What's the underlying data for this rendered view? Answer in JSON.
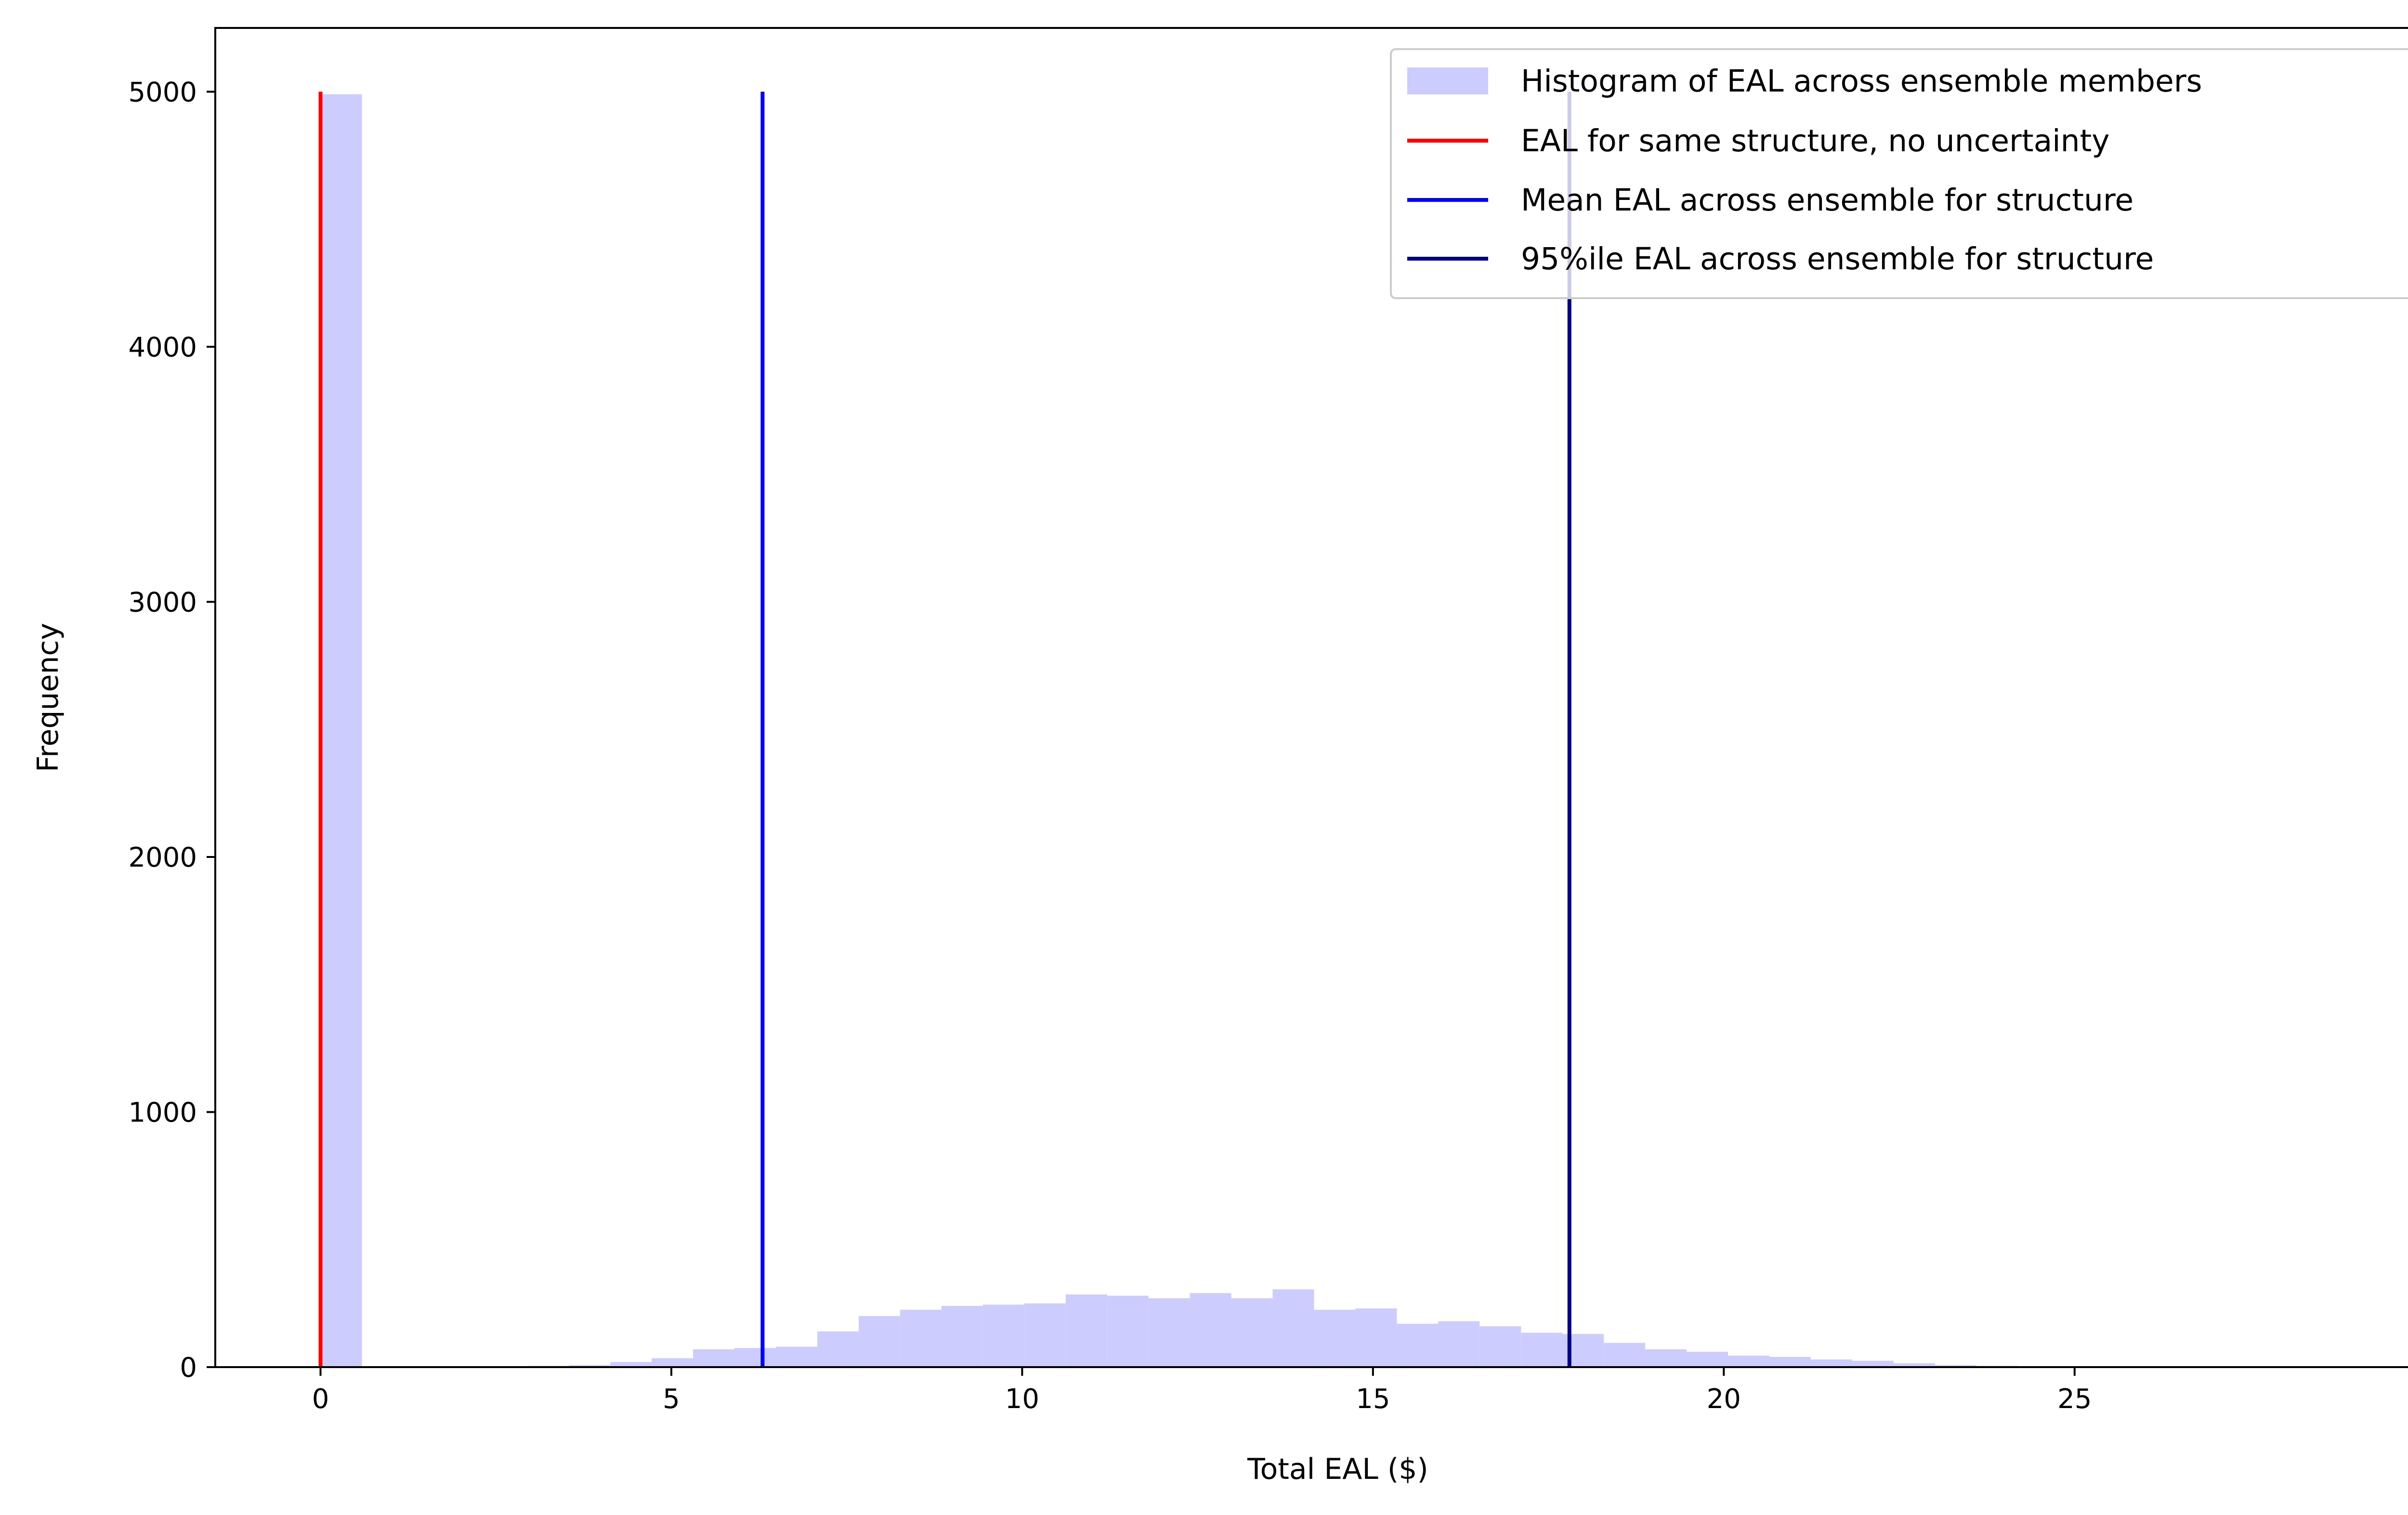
{
  "chart_data": {
    "type": "bar",
    "title": "",
    "xlabel": "Total EAL ($)",
    "ylabel": "Frequency",
    "xlim": [
      -1.5,
      30.5
    ],
    "ylim": [
      0,
      5250
    ],
    "xticks": [
      0,
      5,
      10,
      15,
      20,
      25,
      30
    ],
    "yticks": [
      0,
      1000,
      2000,
      3000,
      4000,
      5000
    ],
    "grid": false,
    "legend_position": "top-right",
    "histogram": {
      "name": "Histogram of EAL across ensemble members",
      "color": "#ccccff",
      "bin_width": 0.59,
      "bins": [
        {
          "x": 0.0,
          "count": 4990
        },
        {
          "x": 2.95,
          "count": 5
        },
        {
          "x": 3.54,
          "count": 8
        },
        {
          "x": 4.13,
          "count": 20
        },
        {
          "x": 4.72,
          "count": 35
        },
        {
          "x": 5.31,
          "count": 70
        },
        {
          "x": 5.9,
          "count": 75
        },
        {
          "x": 6.49,
          "count": 80
        },
        {
          "x": 7.08,
          "count": 140
        },
        {
          "x": 7.67,
          "count": 200
        },
        {
          "x": 8.26,
          "count": 225
        },
        {
          "x": 8.85,
          "count": 240
        },
        {
          "x": 9.44,
          "count": 245
        },
        {
          "x": 10.03,
          "count": 250
        },
        {
          "x": 10.62,
          "count": 285
        },
        {
          "x": 11.21,
          "count": 280
        },
        {
          "x": 11.8,
          "count": 270
        },
        {
          "x": 12.39,
          "count": 290
        },
        {
          "x": 12.98,
          "count": 270
        },
        {
          "x": 13.57,
          "count": 305
        },
        {
          "x": 14.16,
          "count": 225
        },
        {
          "x": 14.75,
          "count": 230
        },
        {
          "x": 15.34,
          "count": 170
        },
        {
          "x": 15.93,
          "count": 180
        },
        {
          "x": 16.52,
          "count": 160
        },
        {
          "x": 17.11,
          "count": 135
        },
        {
          "x": 17.7,
          "count": 130
        },
        {
          "x": 18.29,
          "count": 95
        },
        {
          "x": 18.88,
          "count": 70
        },
        {
          "x": 19.47,
          "count": 60
        },
        {
          "x": 20.06,
          "count": 45
        },
        {
          "x": 20.65,
          "count": 40
        },
        {
          "x": 21.24,
          "count": 30
        },
        {
          "x": 21.83,
          "count": 25
        },
        {
          "x": 22.42,
          "count": 15
        },
        {
          "x": 23.01,
          "count": 8
        },
        {
          "x": 23.6,
          "count": 5
        },
        {
          "x": 24.19,
          "count": 3
        },
        {
          "x": 24.78,
          "count": 2
        },
        {
          "x": 25.37,
          "count": 2
        }
      ]
    },
    "vlines": [
      {
        "name": "EAL for same structure, no uncertainty",
        "x": 0.0,
        "ymax": 5000,
        "color": "#ff0000"
      },
      {
        "name": "Mean EAL across ensemble for structure",
        "x": 6.3,
        "ymax": 5000,
        "color": "#0000ff"
      },
      {
        "name": "95%ile EAL across ensemble for structure",
        "x": 17.8,
        "ymax": 5000,
        "color": "#00008b"
      }
    ]
  }
}
